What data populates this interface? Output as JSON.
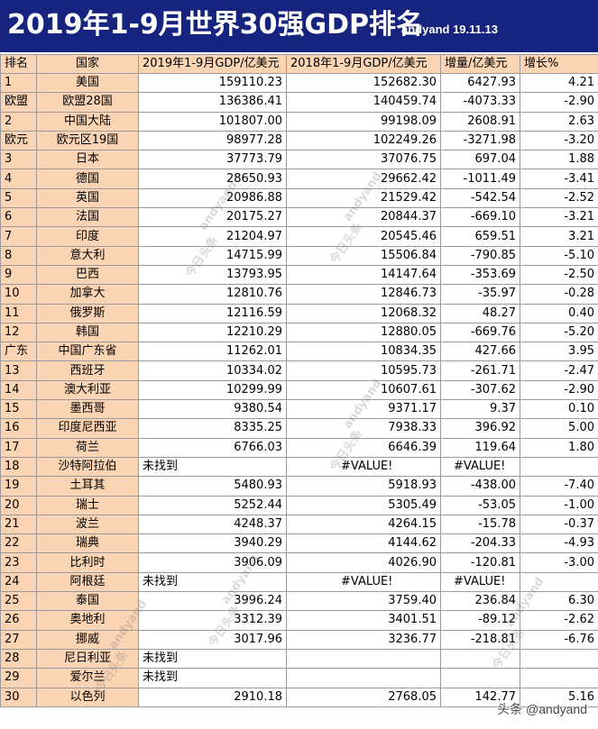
{
  "header": {
    "title": "2019年1-9月世界30强GDP排名",
    "author": "andyand  19.11.13"
  },
  "columns": [
    "排名",
    "国家",
    "2019年1-9月GDP/亿美元",
    "2018年1-9月GDP/亿美元",
    "增量/亿美元",
    "增长%"
  ],
  "rows": [
    {
      "rank": "1",
      "country": "美国",
      "gdp2019": "159110.23",
      "gdp2018": "152682.30",
      "delta": "6427.93",
      "growth": "4.21",
      "neg": false
    },
    {
      "rank": "欧盟",
      "country": "欧盟28国",
      "gdp2019": "136386.41",
      "gdp2018": "140459.74",
      "delta": "-4073.33",
      "growth": "-2.90",
      "neg": true
    },
    {
      "rank": "2",
      "country": "中国大陆",
      "gdp2019": "101807.00",
      "gdp2018": "99198.09",
      "delta": "2608.91",
      "growth": "2.63",
      "neg": false
    },
    {
      "rank": "欧元",
      "country": "欧元区19国",
      "gdp2019": "98977.28",
      "gdp2018": "102249.26",
      "delta": "-3271.98",
      "growth": "-3.20",
      "neg": true
    },
    {
      "rank": "3",
      "country": "日本",
      "gdp2019": "37773.79",
      "gdp2018": "37076.75",
      "delta": "697.04",
      "growth": "1.88",
      "neg": false
    },
    {
      "rank": "4",
      "country": "德国",
      "gdp2019": "28650.93",
      "gdp2018": "29662.42",
      "delta": "-1011.49",
      "growth": "-3.41",
      "neg": true
    },
    {
      "rank": "5",
      "country": "英国",
      "gdp2019": "20986.88",
      "gdp2018": "21529.42",
      "delta": "-542.54",
      "growth": "-2.52",
      "neg": true
    },
    {
      "rank": "6",
      "country": "法国",
      "gdp2019": "20175.27",
      "gdp2018": "20844.37",
      "delta": "-669.10",
      "growth": "-3.21",
      "neg": true
    },
    {
      "rank": "7",
      "country": "印度",
      "gdp2019": "21204.97",
      "gdp2018": "20545.46",
      "delta": "659.51",
      "growth": "3.21",
      "neg": false
    },
    {
      "rank": "8",
      "country": "意大利",
      "gdp2019": "14715.99",
      "gdp2018": "15506.84",
      "delta": "-790.85",
      "growth": "-5.10",
      "neg": true
    },
    {
      "rank": "9",
      "country": "巴西",
      "gdp2019": "13793.95",
      "gdp2018": "14147.64",
      "delta": "-353.69",
      "growth": "-2.50",
      "neg": true
    },
    {
      "rank": "10",
      "country": "加拿大",
      "gdp2019": "12810.76",
      "gdp2018": "12846.73",
      "delta": "-35.97",
      "growth": "-0.28",
      "neg": true
    },
    {
      "rank": "11",
      "country": "俄罗斯",
      "gdp2019": "12116.59",
      "gdp2018": "12068.32",
      "delta": "48.27",
      "growth": "0.40",
      "neg": false
    },
    {
      "rank": "12",
      "country": "韩国",
      "gdp2019": "12210.29",
      "gdp2018": "12880.05",
      "delta": "-669.76",
      "growth": "-5.20",
      "neg": true
    },
    {
      "rank": "广东",
      "country": "中国广东省",
      "gdp2019": "11262.01",
      "gdp2018": "10834.35",
      "delta": "427.66",
      "growth": "3.95",
      "neg": false
    },
    {
      "rank": "13",
      "country": "西班牙",
      "gdp2019": "10334.02",
      "gdp2018": "10595.73",
      "delta": "-261.71",
      "growth": "-2.47",
      "neg": true
    },
    {
      "rank": "14",
      "country": "澳大利亚",
      "gdp2019": "10299.99",
      "gdp2018": "10607.61",
      "delta": "-307.62",
      "growth": "-2.90",
      "neg": true
    },
    {
      "rank": "15",
      "country": "墨西哥",
      "gdp2019": "9380.54",
      "gdp2018": "9371.17",
      "delta": "9.37",
      "growth": "0.10",
      "neg": false
    },
    {
      "rank": "16",
      "country": "印度尼西亚",
      "gdp2019": "8335.25",
      "gdp2018": "7938.33",
      "delta": "396.92",
      "growth": "5.00",
      "neg": false
    },
    {
      "rank": "17",
      "country": "荷兰",
      "gdp2019": "6766.03",
      "gdp2018": "6646.39",
      "delta": "119.64",
      "growth": "1.80",
      "neg": false
    },
    {
      "rank": "18",
      "country": "沙特阿拉伯",
      "gdp2019": "未找到",
      "gdp2018": "#VALUE!",
      "delta": "#VALUE!",
      "growth": "",
      "neg": false,
      "missing": true
    },
    {
      "rank": "19",
      "country": "土耳其",
      "gdp2019": "5480.93",
      "gdp2018": "5918.93",
      "delta": "-438.00",
      "growth": "-7.40",
      "neg": true
    },
    {
      "rank": "20",
      "country": "瑞士",
      "gdp2019": "5252.44",
      "gdp2018": "5305.49",
      "delta": "-53.05",
      "growth": "-1.00",
      "neg": true
    },
    {
      "rank": "21",
      "country": "波兰",
      "gdp2019": "4248.37",
      "gdp2018": "4264.15",
      "delta": "-15.78",
      "growth": "-0.37",
      "neg": true
    },
    {
      "rank": "22",
      "country": "瑞典",
      "gdp2019": "3940.29",
      "gdp2018": "4144.62",
      "delta": "-204.33",
      "growth": "-4.93",
      "neg": true
    },
    {
      "rank": "23",
      "country": "比利时",
      "gdp2019": "3906.09",
      "gdp2018": "4026.90",
      "delta": "-120.81",
      "growth": "-3.00",
      "neg": true
    },
    {
      "rank": "24",
      "country": "阿根廷",
      "gdp2019": "未找到",
      "gdp2018": "#VALUE!",
      "delta": "#VALUE!",
      "growth": "",
      "neg": false,
      "missing": true
    },
    {
      "rank": "25",
      "country": "泰国",
      "gdp2019": "3996.24",
      "gdp2018": "3759.40",
      "delta": "236.84",
      "growth": "6.30",
      "neg": false
    },
    {
      "rank": "26",
      "country": "奥地利",
      "gdp2019": "3312.39",
      "gdp2018": "3401.51",
      "delta": "-89.12",
      "growth": "-2.62",
      "neg": true
    },
    {
      "rank": "27",
      "country": "挪威",
      "gdp2019": "3017.96",
      "gdp2018": "3236.77",
      "delta": "-218.81",
      "growth": "-6.76",
      "neg": true
    },
    {
      "rank": "28",
      "country": "尼日利亚",
      "gdp2019": "未找到",
      "gdp2018": "",
      "delta": "",
      "growth": "",
      "neg": false,
      "missing": true
    },
    {
      "rank": "29",
      "country": "爱尔兰",
      "gdp2019": "未找到",
      "gdp2018": "",
      "delta": "",
      "growth": "",
      "neg": false,
      "missing": true
    },
    {
      "rank": "30",
      "country": "以色列",
      "gdp2019": "2910.18",
      "gdp2018": "2768.05",
      "delta": "142.77",
      "growth": "5.16",
      "neg": false
    }
  ],
  "watermarks": {
    "toutiao": "今日头条",
    "andyand": "andyand",
    "footer": "头条 @andyand"
  },
  "colors": {
    "header_bg": "#16237f",
    "label_bg": "#fbd4b4",
    "negative": "#e02020"
  }
}
